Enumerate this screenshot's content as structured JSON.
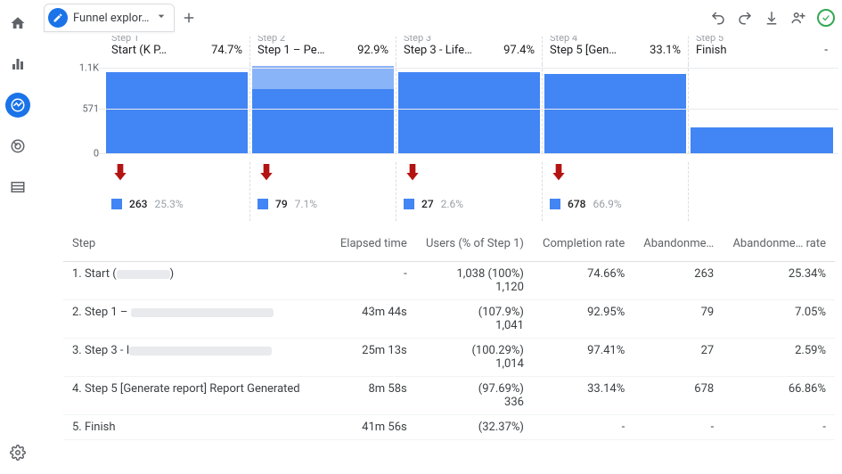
{
  "colors": {
    "primary": "#1a73e8",
    "bar_main": "#4285f4",
    "bar_light": "#8ab4f8",
    "drop_arrow": "#b31412",
    "grid": "#e8eaed",
    "text_muted": "#9aa0a6",
    "success": "#34a853"
  },
  "tab": {
    "title": "Funnel explor…"
  },
  "chart": {
    "y_max": 1140,
    "y_ticks": [
      {
        "label": "1.1K",
        "value": 1100
      },
      {
        "label": "571",
        "value": 571
      },
      {
        "label": "0",
        "value": 0
      }
    ],
    "steps": [
      {
        "mini": "Step 1",
        "name": "Start (K    P…",
        "pct": "74.7%",
        "top_value": 0,
        "main_value": 1038
      },
      {
        "mini": "Step 2",
        "name": "Step 1 – Pe…",
        "pct": "92.9%",
        "top_value": 300,
        "main_value": 820
      },
      {
        "mini": "Step 3",
        "name": "Step 3 - Life…",
        "pct": "97.4%",
        "top_value": 0,
        "main_value": 1041
      },
      {
        "mini": "Step 4",
        "name": "Step 5 [Gen…",
        "pct": "33.1%",
        "top_value": 0,
        "main_value": 1014
      },
      {
        "mini": "Step 5",
        "name": "Finish",
        "pct": "-",
        "top_value": 0,
        "main_value": 336
      }
    ],
    "drops": [
      {
        "count": "263",
        "pct": "25.3%"
      },
      {
        "count": "79",
        "pct": "7.1%"
      },
      {
        "count": "27",
        "pct": "2.6%"
      },
      {
        "count": "678",
        "pct": "66.9%"
      },
      null
    ]
  },
  "table": {
    "headers": {
      "step": "Step",
      "elapsed": "Elapsed time",
      "users": "Users (% of Step 1)",
      "completion": "Completion rate",
      "abandon_n": "Abandonme…",
      "abandon_r": "Abandonme… rate"
    },
    "rows": [
      {
        "step": "1. Start (",
        "redact_w": 60,
        "step_suffix": ")",
        "elapsed": "-",
        "users": "1,038 (100%)\n1,120",
        "completion": "74.66%",
        "abandon_n": "263",
        "abandon_r": "25.34%"
      },
      {
        "step": "2. Step 1 – ",
        "redact_w": 160,
        "step_suffix": "",
        "elapsed": "43m 44s",
        "users": "(107.9%)\n1,041",
        "completion": "92.95%",
        "abandon_n": "79",
        "abandon_r": "7.05%"
      },
      {
        "step": "3. Step 3 - I",
        "redact_w": 160,
        "step_suffix": "",
        "elapsed": "25m 13s",
        "users": "(100.29%)\n1,014",
        "completion": "97.41%",
        "abandon_n": "27",
        "abandon_r": "2.59%"
      },
      {
        "step": "4. Step 5 [Generate report] Report Generated",
        "redact_w": 0,
        "step_suffix": "",
        "elapsed": "8m 58s",
        "users": "(97.69%)\n336",
        "completion": "33.14%",
        "abandon_n": "678",
        "abandon_r": "66.86%"
      },
      {
        "step": "5. Finish",
        "redact_w": 0,
        "step_suffix": "",
        "elapsed": "41m 56s",
        "users": "(32.37%)",
        "completion": "-",
        "abandon_n": "-",
        "abandon_r": "-"
      }
    ]
  }
}
